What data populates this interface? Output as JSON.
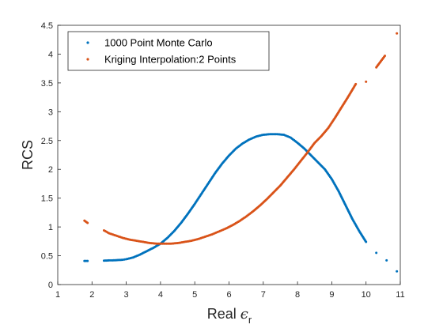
{
  "chart_data": {
    "type": "scatter",
    "xlabel_main": "Real ",
    "xlabel_symbol": "ϵ",
    "xlabel_subscript": "r",
    "ylabel": "RCS",
    "xlim": [
      1,
      11
    ],
    "ylim": [
      0,
      4.5
    ],
    "xticks": [
      "1",
      "2",
      "3",
      "4",
      "5",
      "6",
      "7",
      "8",
      "9",
      "10",
      "11"
    ],
    "yticks": [
      "0",
      "0.5",
      "1",
      "1.5",
      "2",
      "2.5",
      "3",
      "3.5",
      "4",
      "4.5"
    ],
    "grid": false,
    "legend_position": "top-left",
    "series": [
      {
        "name": "1000 Point Monte Carlo",
        "color": "#0072BD",
        "marker": "dot",
        "points": [
          [
            1.78,
            0.41
          ],
          [
            1.87,
            0.41
          ],
          [
            2.35,
            0.415
          ],
          [
            2.5,
            0.42
          ],
          [
            2.6,
            0.42
          ],
          [
            2.75,
            0.425
          ],
          [
            2.9,
            0.43
          ],
          [
            3.0,
            0.44
          ],
          [
            3.2,
            0.47
          ],
          [
            3.4,
            0.52
          ],
          [
            3.6,
            0.58
          ],
          [
            3.8,
            0.64
          ],
          [
            4.0,
            0.71
          ],
          [
            4.2,
            0.81
          ],
          [
            4.4,
            0.93
          ],
          [
            4.6,
            1.07
          ],
          [
            4.8,
            1.23
          ],
          [
            5.0,
            1.4
          ],
          [
            5.2,
            1.58
          ],
          [
            5.4,
            1.76
          ],
          [
            5.6,
            1.94
          ],
          [
            5.8,
            2.1
          ],
          [
            6.0,
            2.24
          ],
          [
            6.2,
            2.36
          ],
          [
            6.4,
            2.45
          ],
          [
            6.6,
            2.52
          ],
          [
            6.8,
            2.57
          ],
          [
            7.0,
            2.6
          ],
          [
            7.2,
            2.61
          ],
          [
            7.4,
            2.61
          ],
          [
            7.6,
            2.6
          ],
          [
            7.8,
            2.55
          ],
          [
            8.0,
            2.46
          ],
          [
            8.2,
            2.36
          ],
          [
            8.4,
            2.24
          ],
          [
            8.6,
            2.12
          ],
          [
            8.8,
            2.0
          ],
          [
            9.0,
            1.83
          ],
          [
            9.2,
            1.62
          ],
          [
            9.4,
            1.38
          ],
          [
            9.6,
            1.14
          ],
          [
            9.8,
            0.93
          ],
          [
            10.0,
            0.74
          ],
          [
            10.3,
            0.55
          ],
          [
            10.6,
            0.42
          ],
          [
            10.9,
            0.23
          ]
        ]
      },
      {
        "name": "Kriging Interpolation:2 Points",
        "color": "#D95319",
        "marker": "dot",
        "points": [
          [
            1.78,
            1.11
          ],
          [
            1.87,
            1.07
          ],
          [
            2.35,
            0.94
          ],
          [
            2.5,
            0.89
          ],
          [
            2.7,
            0.85
          ],
          [
            2.9,
            0.81
          ],
          [
            3.1,
            0.78
          ],
          [
            3.3,
            0.76
          ],
          [
            3.5,
            0.74
          ],
          [
            3.7,
            0.72
          ],
          [
            3.9,
            0.71
          ],
          [
            4.1,
            0.71
          ],
          [
            4.3,
            0.71
          ],
          [
            4.5,
            0.72
          ],
          [
            4.7,
            0.74
          ],
          [
            4.9,
            0.76
          ],
          [
            5.1,
            0.79
          ],
          [
            5.3,
            0.83
          ],
          [
            5.5,
            0.87
          ],
          [
            5.7,
            0.92
          ],
          [
            5.9,
            0.97
          ],
          [
            6.1,
            1.03
          ],
          [
            6.3,
            1.1
          ],
          [
            6.5,
            1.18
          ],
          [
            6.7,
            1.27
          ],
          [
            6.9,
            1.37
          ],
          [
            7.1,
            1.48
          ],
          [
            7.3,
            1.6
          ],
          [
            7.5,
            1.72
          ],
          [
            7.7,
            1.86
          ],
          [
            7.9,
            2.0
          ],
          [
            8.1,
            2.15
          ],
          [
            8.3,
            2.3
          ],
          [
            8.5,
            2.46
          ],
          [
            8.7,
            2.58
          ],
          [
            8.9,
            2.72
          ],
          [
            9.1,
            2.9
          ],
          [
            9.3,
            3.09
          ],
          [
            9.5,
            3.28
          ],
          [
            9.7,
            3.48
          ],
          [
            10.0,
            3.52
          ],
          [
            10.3,
            3.77
          ],
          [
            10.55,
            3.97
          ],
          [
            10.9,
            4.36
          ]
        ]
      }
    ]
  }
}
